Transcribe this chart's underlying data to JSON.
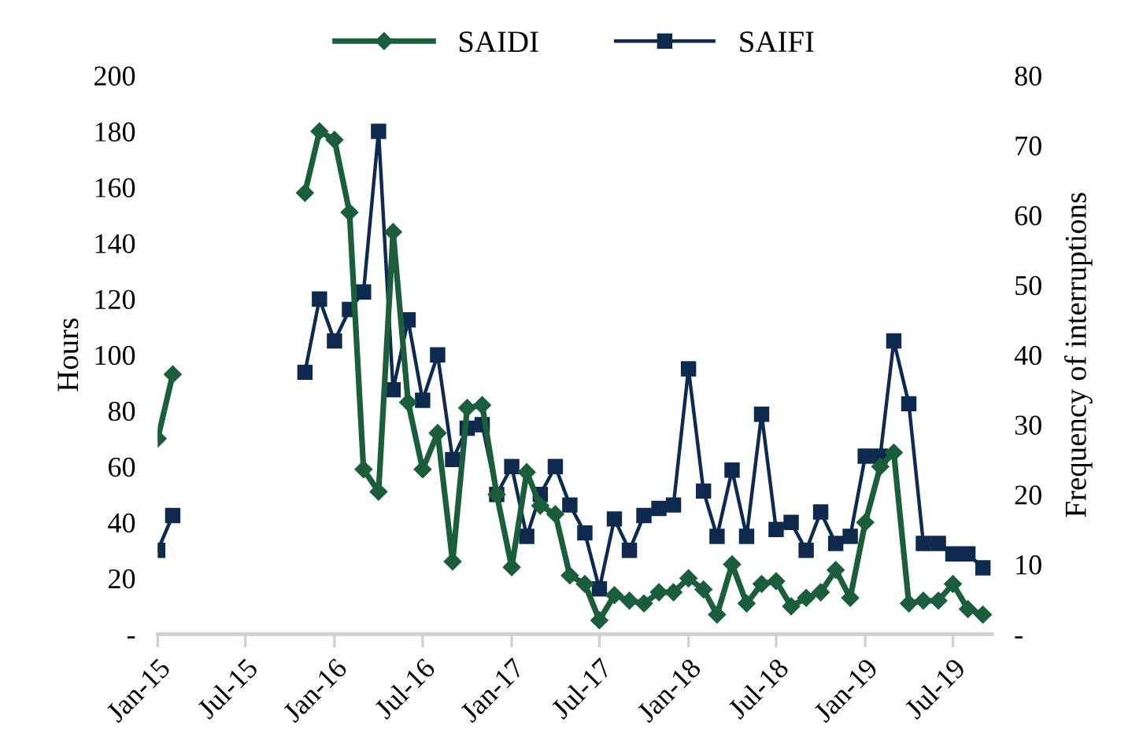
{
  "chart_data": {
    "type": "line",
    "ylabel": "Hours",
    "y2label": "Frequency of interruptions",
    "x": [
      "2015-01",
      "2015-02",
      "2015-03",
      "2015-04",
      "2015-05",
      "2015-06",
      "2015-07",
      "2015-08",
      "2015-09",
      "2015-10",
      "2015-11",
      "2015-12",
      "2016-01",
      "2016-02",
      "2016-03",
      "2016-04",
      "2016-05",
      "2016-06",
      "2016-07",
      "2016-08",
      "2016-09",
      "2016-10",
      "2016-11",
      "2016-12",
      "2017-01",
      "2017-02",
      "2017-03",
      "2017-04",
      "2017-05",
      "2017-06",
      "2017-07",
      "2017-08",
      "2017-09",
      "2017-10",
      "2017-11",
      "2017-12",
      "2018-01",
      "2018-02",
      "2018-03",
      "2018-04",
      "2018-05",
      "2018-06",
      "2018-07",
      "2018-08",
      "2018-09",
      "2018-10",
      "2018-11",
      "2018-12",
      "2019-01",
      "2019-02",
      "2019-03",
      "2019-04",
      "2019-05",
      "2019-06",
      "2019-07",
      "2019-08",
      "2019-09"
    ],
    "series": [
      {
        "name": "SAIDI",
        "color": "#1b5e3b",
        "marker": "diamond",
        "values": [
          70,
          93,
          null,
          null,
          null,
          null,
          null,
          null,
          null,
          null,
          158,
          180,
          177,
          151,
          59,
          51,
          144,
          83,
          59,
          72,
          26,
          81,
          82,
          50,
          24,
          58,
          46,
          43,
          21,
          18,
          5,
          14,
          12,
          11,
          15,
          15,
          20,
          16,
          7,
          25,
          11,
          18,
          19,
          10,
          13,
          15,
          23,
          13,
          40,
          60,
          65,
          11,
          12,
          12,
          18,
          9,
          7
        ]
      },
      {
        "name": "SAIFI",
        "color": "#0f2a4f",
        "marker": "square",
        "axis": "y2",
        "values": [
          12,
          17,
          null,
          null,
          null,
          null,
          null,
          null,
          null,
          null,
          37.5,
          48,
          42,
          46.5,
          49,
          72,
          35,
          45,
          33.5,
          40,
          25,
          29.5,
          30,
          20,
          24,
          14,
          20,
          24,
          18.5,
          14.5,
          6.5,
          16.5,
          12,
          17,
          18,
          18.5,
          38,
          20.5,
          14,
          23.5,
          14,
          31.5,
          15,
          16,
          12,
          17.5,
          13,
          14,
          25.5,
          25.5,
          42,
          33,
          13,
          13,
          11.5,
          11.5,
          9.5
        ]
      }
    ],
    "xlim": [
      "2015-01-01",
      "2019-09-20"
    ],
    "xticks": [
      {
        "value": "2015-01",
        "label": "Jan-15"
      },
      {
        "value": "2015-07",
        "label": "Jul-15"
      },
      {
        "value": "2016-01",
        "label": "Jan-16"
      },
      {
        "value": "2016-07",
        "label": "Jul-16"
      },
      {
        "value": "2017-01",
        "label": "Jan-17"
      },
      {
        "value": "2017-07",
        "label": "Jul-17"
      },
      {
        "value": "2018-01",
        "label": "Jan-18"
      },
      {
        "value": "2018-07",
        "label": "Jul-18"
      },
      {
        "value": "2019-01",
        "label": "Jan-19"
      },
      {
        "value": "2019-07",
        "label": "Jul-19"
      }
    ],
    "ylim": [
      0,
      200
    ],
    "yticks": [
      {
        "value": 0,
        "label": "-"
      },
      20,
      40,
      60,
      80,
      100,
      120,
      140,
      160,
      180,
      200
    ],
    "y2lim": [
      0,
      80
    ],
    "y2ticks": [
      {
        "value": 0,
        "label": "-"
      },
      10,
      20,
      30,
      40,
      50,
      60,
      70,
      80
    ],
    "legend": "top",
    "grid": false
  }
}
